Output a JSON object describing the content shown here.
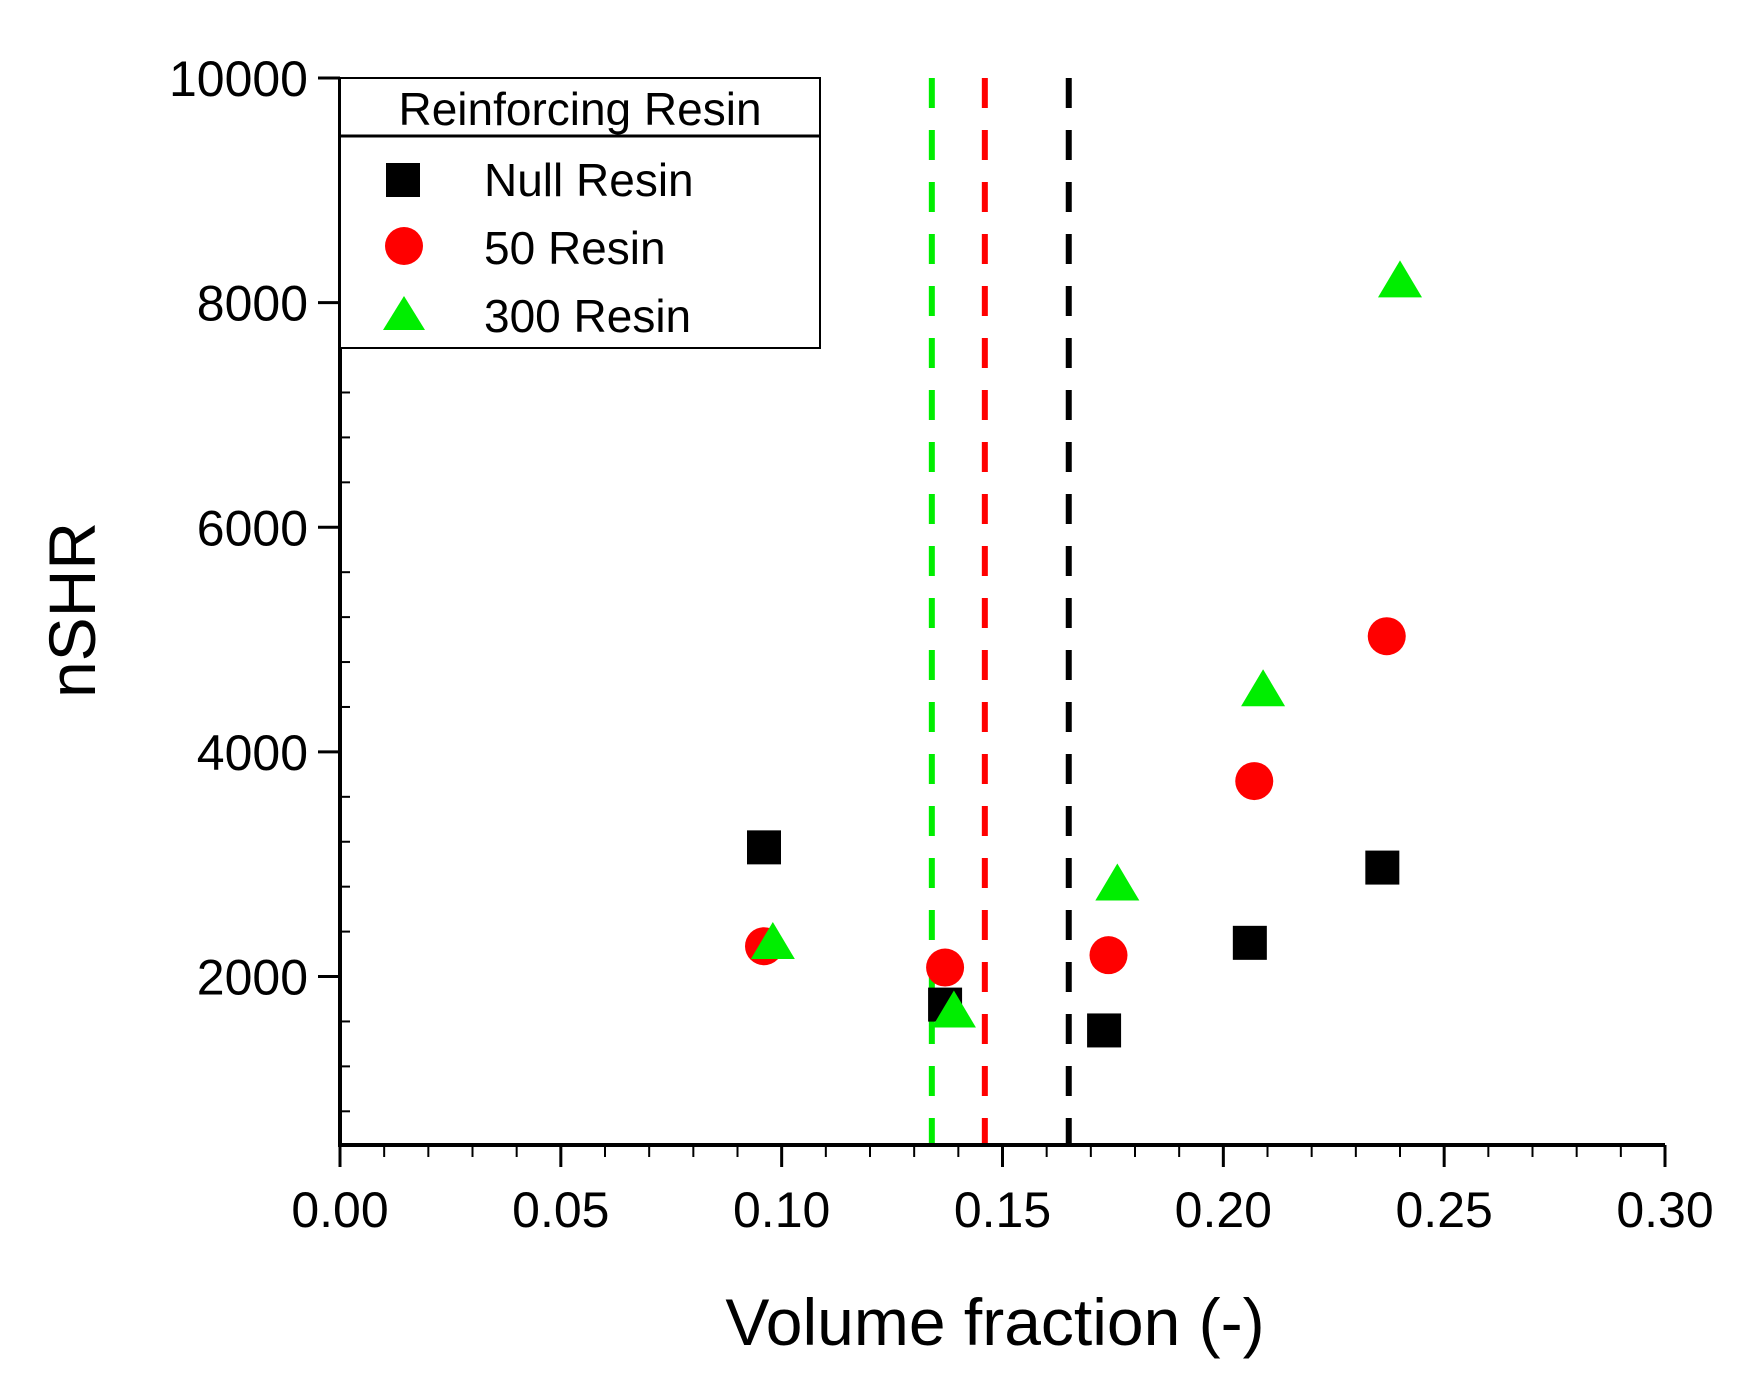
{
  "chart_data": {
    "type": "scatter",
    "title": "",
    "xlabel": "Volume fraction (-)",
    "ylabel": "nSHR",
    "xlim": [
      0.0,
      0.3
    ],
    "ylim": [
      500,
      10000
    ],
    "x_ticks": [
      {
        "value": 0.0,
        "label": "0.00"
      },
      {
        "value": 0.05,
        "label": "0.05"
      },
      {
        "value": 0.1,
        "label": "0.10"
      },
      {
        "value": 0.15,
        "label": "0.15"
      },
      {
        "value": 0.2,
        "label": "0.20"
      },
      {
        "value": 0.25,
        "label": "0.25"
      },
      {
        "value": 0.3,
        "label": "0.30"
      }
    ],
    "y_ticks": [
      {
        "value": 2000,
        "label": "2000"
      },
      {
        "value": 4000,
        "label": "4000"
      },
      {
        "value": 6000,
        "label": "6000"
      },
      {
        "value": 8000,
        "label": "8000"
      },
      {
        "value": 10000,
        "label": "10000"
      }
    ],
    "grid": false,
    "legend": {
      "title": "Reinforcing Resin",
      "position": "top-left"
    },
    "series": [
      {
        "name": "Null Resin",
        "marker": "square",
        "color": "#000000",
        "points": [
          {
            "x": 0.096,
            "y": 3150
          },
          {
            "x": 0.137,
            "y": 1750
          },
          {
            "x": 0.173,
            "y": 1520
          },
          {
            "x": 0.206,
            "y": 2300
          },
          {
            "x": 0.236,
            "y": 2970
          }
        ]
      },
      {
        "name": "50 Resin",
        "marker": "circle",
        "color": "#ff0000",
        "points": [
          {
            "x": 0.096,
            "y": 2270
          },
          {
            "x": 0.137,
            "y": 2080
          },
          {
            "x": 0.174,
            "y": 2190
          },
          {
            "x": 0.207,
            "y": 3740
          },
          {
            "x": 0.237,
            "y": 5030
          }
        ]
      },
      {
        "name": "300 Resin",
        "marker": "triangle",
        "color": "#00ee00",
        "points": [
          {
            "x": 0.098,
            "y": 2290
          },
          {
            "x": 0.139,
            "y": 1680
          },
          {
            "x": 0.176,
            "y": 2810
          },
          {
            "x": 0.209,
            "y": 4540
          },
          {
            "x": 0.24,
            "y": 8180
          }
        ]
      }
    ],
    "reference_lines": [
      {
        "x": 0.134,
        "color": "#00ee00",
        "style": "dashed"
      },
      {
        "x": 0.146,
        "color": "#ff0000",
        "style": "dashed"
      },
      {
        "x": 0.165,
        "color": "#000000",
        "style": "dashed"
      }
    ]
  }
}
